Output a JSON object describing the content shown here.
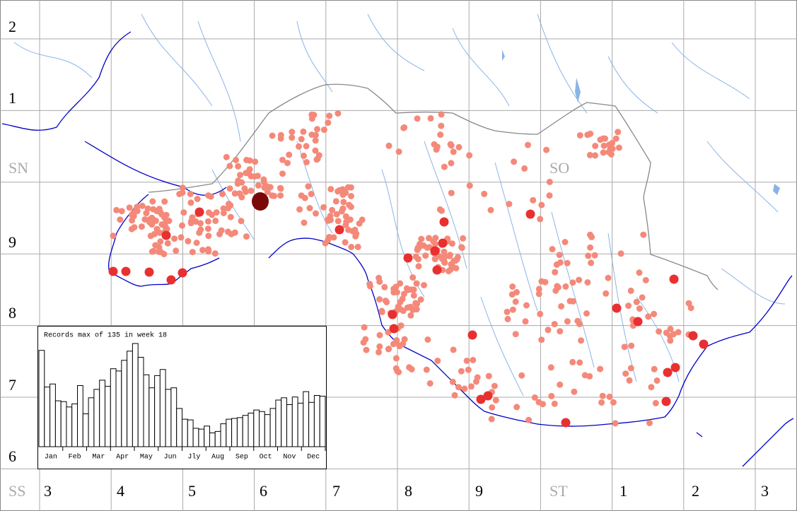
{
  "map": {
    "grid_labels": {
      "rows": [
        "2",
        "1",
        "SN",
        "9",
        "8",
        "7",
        "6",
        "SS"
      ],
      "cols": [
        "3",
        "4",
        "5",
        "6",
        "7",
        "8",
        "9",
        "ST",
        "1",
        "2",
        "3"
      ],
      "square": "SO"
    },
    "inset": {
      "title": "Records max of 135 in week 18",
      "months": [
        "Jan",
        "Feb",
        "Mar",
        "Apr",
        "May",
        "Jun",
        "Jly",
        "Aug",
        "Sep",
        "Oct",
        "Nov",
        "Dec"
      ],
      "weeks": [
        126,
        78,
        82,
        60,
        59,
        52,
        56,
        80,
        43,
        64,
        75,
        87,
        79,
        102,
        99,
        113,
        125,
        135,
        117,
        94,
        77,
        93,
        101,
        75,
        77,
        50,
        36,
        35,
        24,
        23,
        27,
        18,
        20,
        30,
        36,
        37,
        38,
        41,
        44,
        48,
        46,
        42,
        50,
        61,
        64,
        55,
        65,
        57,
        72,
        58,
        67,
        66
      ]
    }
  }
}
